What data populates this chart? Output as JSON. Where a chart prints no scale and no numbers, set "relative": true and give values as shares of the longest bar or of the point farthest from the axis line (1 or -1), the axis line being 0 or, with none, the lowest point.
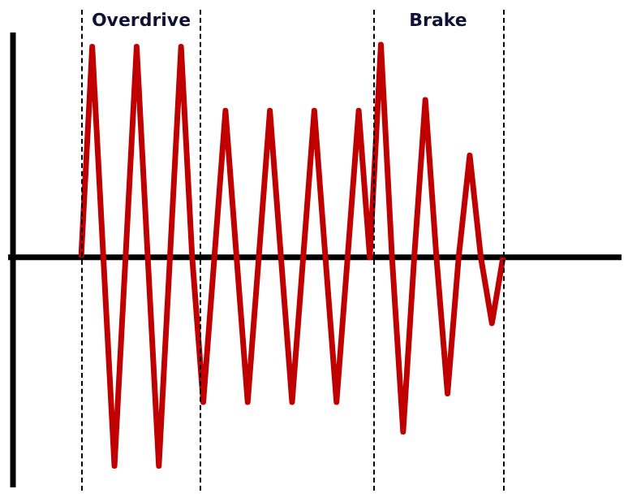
{
  "chart_data": {
    "type": "line",
    "relative": true,
    "categories": [
      null,
      null,
      null,
      null,
      null,
      null,
      null,
      null,
      null,
      null,
      null,
      null,
      null,
      null,
      null,
      null,
      null,
      null,
      null,
      null,
      null,
      null,
      null,
      null,
      null,
      null,
      null,
      null,
      null,
      null,
      null,
      null,
      null,
      null,
      null,
      null,
      null,
      null,
      null
    ],
    "series": [
      {
        "color": "#c00000",
        "values": [
          0,
          0.99,
          0,
          -0.98,
          0,
          0.99,
          0,
          -0.98,
          0,
          0.99,
          0,
          -0.68,
          0,
          0.69,
          0,
          -0.68,
          0,
          0.69,
          0,
          -0.68,
          0,
          0.69,
          0,
          -0.68,
          0,
          0.69,
          0,
          1,
          0,
          -0.82,
          0,
          0.74,
          0,
          -0.64,
          0,
          0.48,
          0,
          -0.31,
          0
        ]
      }
    ],
    "annotations": [
      "Overdrive",
      "Brake"
    ]
  }
}
